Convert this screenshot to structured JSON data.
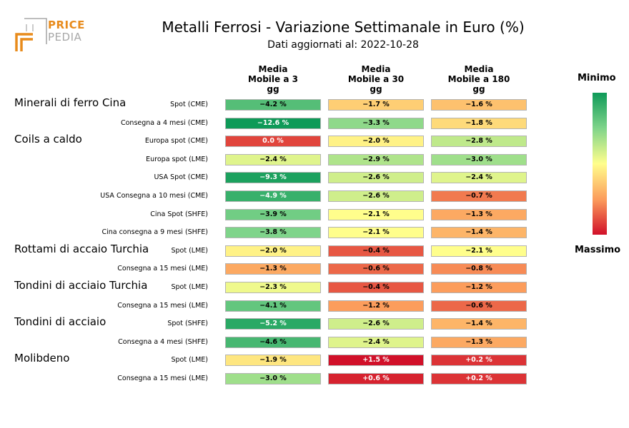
{
  "logo": {
    "word1": "PRICE",
    "word2": "PEDIA"
  },
  "title": "Metalli Ferrosi - Variazione Settimanale in Euro (%)",
  "subtitle": "Dati aggiornati al: 2022-10-28",
  "legend": {
    "min_label": "Minimo",
    "max_label": "Massimo"
  },
  "colors": {
    "min": "#0e9a58",
    "mid": "#fffe8c",
    "max": "#d11029"
  },
  "chart_data": {
    "type": "heatmap",
    "columns": [
      {
        "line1": "Media",
        "line2": "Mobile a 3",
        "line3": "gg"
      },
      {
        "line1": "Media",
        "line2": "Mobile a 30",
        "line3": "gg"
      },
      {
        "line1": "Media",
        "line2": "Mobile a 180",
        "line3": "gg"
      }
    ],
    "groups": [
      {
        "name": "Minerali di ferro Cina",
        "rows": [
          {
            "label": "Spot (CME)",
            "values": [
              -4.2,
              -1.7,
              -1.6
            ]
          },
          {
            "label": "Consegna a 4 mesi (CME)",
            "values": [
              -12.6,
              -3.3,
              -1.8
            ]
          }
        ]
      },
      {
        "name": "Coils a caldo",
        "rows": [
          {
            "label": "Europa spot (CME)",
            "values": [
              0.0,
              -2.0,
              -2.8
            ]
          },
          {
            "label": "Europa spot (LME)",
            "values": [
              -2.4,
              -2.9,
              -3.0
            ]
          },
          {
            "label": "USA Spot (CME)",
            "values": [
              -9.3,
              -2.6,
              -2.4
            ]
          },
          {
            "label": "USA Consegna a 10 mesi (CME)",
            "values": [
              -4.9,
              -2.6,
              -0.7
            ]
          },
          {
            "label": "Cina Spot (SHFE)",
            "values": [
              -3.9,
              -2.1,
              -1.3
            ]
          },
          {
            "label": "Cina consegna a 9 mesi (SHFE)",
            "values": [
              -3.8,
              -2.1,
              -1.4
            ]
          }
        ]
      },
      {
        "name": "Rottami di accaio Turchia",
        "rows": [
          {
            "label": "Spot (LME)",
            "values": [
              -2.0,
              -0.4,
              -2.1
            ]
          },
          {
            "label": "Consegna a 15 mesi (LME)",
            "values": [
              -1.3,
              -0.6,
              -0.8
            ]
          }
        ]
      },
      {
        "name": "Tondini di acciaio Turchia",
        "rows": [
          {
            "label": "Spot (LME)",
            "values": [
              -2.3,
              -0.4,
              -1.2
            ]
          },
          {
            "label": "Consegna a 15 mesi (LME)",
            "values": [
              -4.1,
              -1.2,
              -0.6
            ]
          }
        ]
      },
      {
        "name": "Tondini di acciaio",
        "rows": [
          {
            "label": "Spot (SHFE)",
            "values": [
              -5.2,
              -2.6,
              -1.4
            ]
          },
          {
            "label": "Consegna a 4 mesi (SHFE)",
            "values": [
              -4.6,
              -2.4,
              -1.3
            ]
          }
        ]
      },
      {
        "name": "Molibdeno",
        "rows": [
          {
            "label": "Spot (LME)",
            "values": [
              -1.9,
              1.5,
              0.2
            ]
          },
          {
            "label": "Consegna a 15 mesi (LME)",
            "values": [
              -3.0,
              0.6,
              0.2
            ]
          }
        ]
      }
    ]
  }
}
